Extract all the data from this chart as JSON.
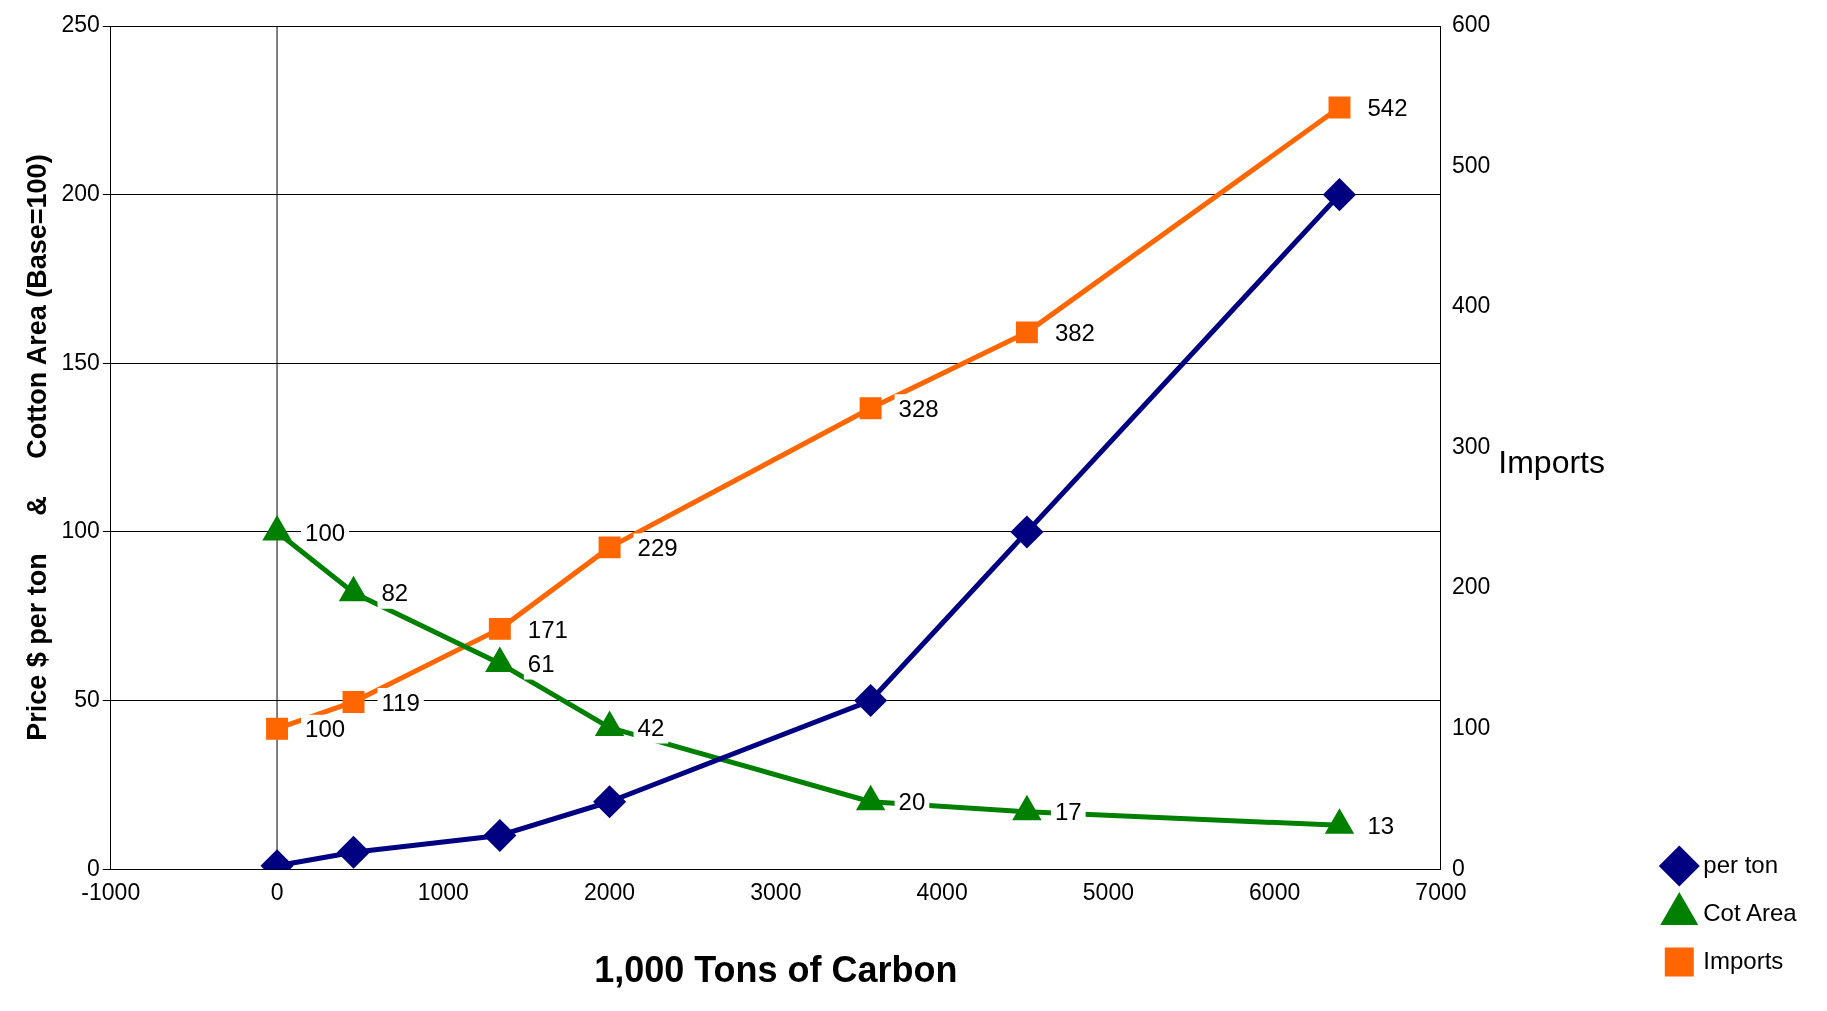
{
  "chart_data": {
    "type": "line",
    "xlabel": "1,000 Tons of Carbon",
    "ylabel": "Price $ per ton     &     Cotton Area (Base=100)",
    "y2label": "Imports",
    "xlim": [
      -1000,
      7000
    ],
    "xticks": [
      -1000,
      0,
      1000,
      2000,
      3000,
      4000,
      5000,
      6000,
      7000
    ],
    "ylim": [
      0,
      250
    ],
    "yticks": [
      0,
      50,
      100,
      150,
      200,
      250
    ],
    "y2lim": [
      0,
      600
    ],
    "y2ticks": [
      0,
      100,
      200,
      300,
      400,
      500,
      600
    ],
    "grid": "y",
    "legend": "right",
    "line_style": "solid",
    "ref_lines": [
      {
        "axis": "x",
        "value": 0,
        "color": "#000000"
      }
    ],
    "series": [
      {
        "name": "per ton",
        "color": "#000080",
        "marker": "diamond",
        "x": [
          0,
          460,
          1340,
          2000,
          3570,
          4510,
          6390
        ],
        "values": [
          1,
          5,
          10,
          20,
          50,
          100,
          200
        ]
      },
      {
        "name": "Cot Area",
        "color": "#008000",
        "marker": "triangle",
        "x": [
          0,
          460,
          1340,
          2000,
          3570,
          4510,
          6390
        ],
        "values": [
          100,
          82,
          61,
          42,
          20,
          17,
          13
        ],
        "value_labels": [
          "100",
          "82",
          "61",
          "42",
          "20",
          "17",
          "13"
        ]
      },
      {
        "name": "Imports",
        "color": "#ff6600",
        "marker": "square",
        "axis": "y2",
        "x": [
          0,
          460,
          1340,
          2000,
          3570,
          4510,
          6390
        ],
        "values": [
          100,
          119,
          171,
          229,
          328,
          382,
          542
        ],
        "value_labels": [
          "100",
          "119",
          "171",
          "229",
          "328",
          "382",
          "542"
        ]
      }
    ]
  }
}
